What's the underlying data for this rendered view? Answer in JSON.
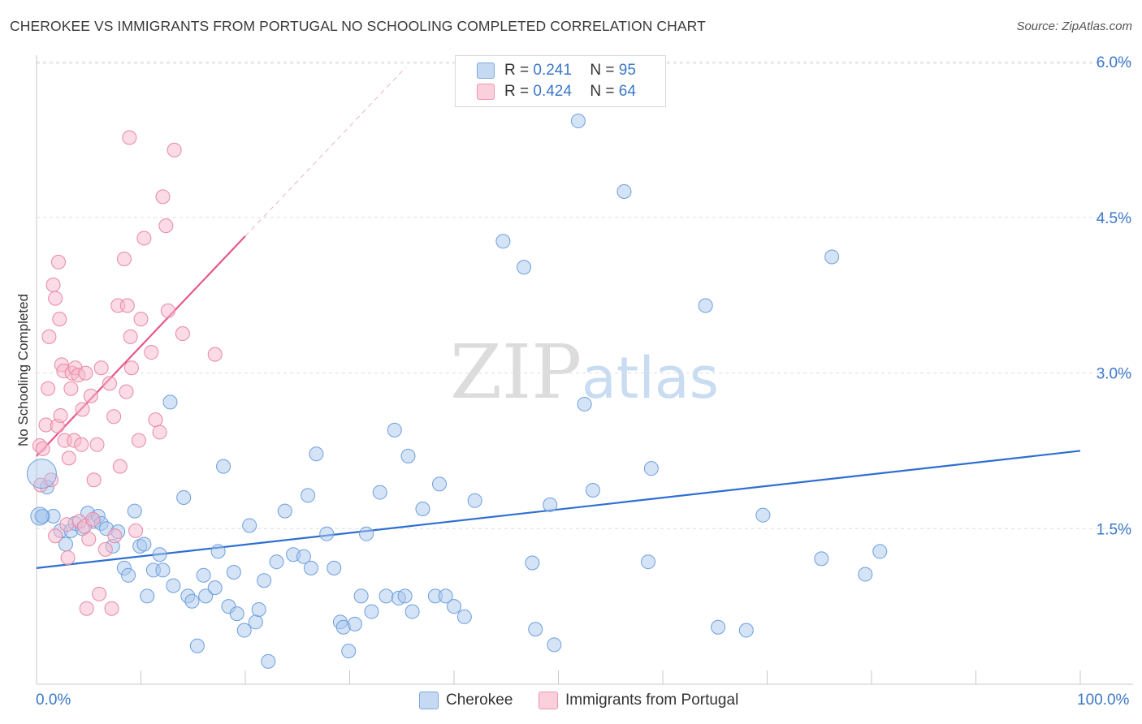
{
  "title": "CHEROKEE VS IMMIGRANTS FROM PORTUGAL NO SCHOOLING COMPLETED CORRELATION CHART",
  "source": "Source: ZipAtlas.com",
  "watermark": {
    "zip": "ZIP",
    "atlas": "atlas"
  },
  "legend": {
    "r_label": "R =",
    "n_label": "N =",
    "series": [
      {
        "name": "Cherokee",
        "r": "0.241",
        "n": "95",
        "color": "#a9c7ee"
      },
      {
        "name": "Immigrants from Portugal",
        "r": "0.424",
        "n": "64",
        "color": "#f7b8cb"
      }
    ]
  },
  "x_axis": {
    "min_label": "0.0%",
    "max_label": "100.0%"
  },
  "chart_data": {
    "type": "scatter",
    "title": "CHEROKEE VS IMMIGRANTS FROM PORTUGAL NO SCHOOLING COMPLETED CORRELATION CHART",
    "xlabel": "",
    "ylabel": "No Schooling Completed",
    "xlim": [
      0,
      100
    ],
    "ylim": [
      0,
      6.3
    ],
    "y_ticks": [
      {
        "value": 1.5,
        "label": "1.5%"
      },
      {
        "value": 3.0,
        "label": "3.0%"
      },
      {
        "value": 4.5,
        "label": "4.5%"
      },
      {
        "value": 6.0,
        "label": "6.0%"
      }
    ],
    "x_ticks": [
      0,
      10,
      20,
      30,
      40,
      50,
      60,
      70,
      80,
      90,
      100
    ],
    "grid": "horizontal-dashed",
    "series": [
      {
        "name": "Cherokee",
        "color": "#a9c7ee",
        "stroke": "#6e9fdc",
        "trend": {
          "x": [
            0,
            100
          ],
          "y": [
            1.12,
            2.25
          ],
          "color": "#2e6fd0"
        },
        "points": [
          [
            0.5,
            1.62
          ],
          [
            0.6,
            1.62
          ],
          [
            1.0,
            1.9
          ],
          [
            1.6,
            1.62
          ],
          [
            2.3,
            1.48
          ],
          [
            2.8,
            1.35
          ],
          [
            3.3,
            1.48
          ],
          [
            3.7,
            1.55
          ],
          [
            4.4,
            1.5
          ],
          [
            4.9,
            1.65
          ],
          [
            5.5,
            1.57
          ],
          [
            5.9,
            1.62
          ],
          [
            6.2,
            1.55
          ],
          [
            6.7,
            1.5
          ],
          [
            7.3,
            1.33
          ],
          [
            7.8,
            1.47
          ],
          [
            8.4,
            1.12
          ],
          [
            8.8,
            1.05
          ],
          [
            9.4,
            1.67
          ],
          [
            9.9,
            1.33
          ],
          [
            10.3,
            1.35
          ],
          [
            10.6,
            0.85
          ],
          [
            11.2,
            1.1
          ],
          [
            11.8,
            1.25
          ],
          [
            12.1,
            1.1
          ],
          [
            12.8,
            2.72
          ],
          [
            13.1,
            0.95
          ],
          [
            14.1,
            1.8
          ],
          [
            14.5,
            0.85
          ],
          [
            14.9,
            0.8
          ],
          [
            15.4,
            0.37
          ],
          [
            16.2,
            0.85
          ],
          [
            16.0,
            1.05
          ],
          [
            17.1,
            0.93
          ],
          [
            17.4,
            1.28
          ],
          [
            17.9,
            2.1
          ],
          [
            18.4,
            0.75
          ],
          [
            18.9,
            1.08
          ],
          [
            19.2,
            0.68
          ],
          [
            19.9,
            0.52
          ],
          [
            20.4,
            1.53
          ],
          [
            21.0,
            0.6
          ],
          [
            21.3,
            0.72
          ],
          [
            21.8,
            1.0
          ],
          [
            22.2,
            0.22
          ],
          [
            23.0,
            1.18
          ],
          [
            23.8,
            1.67
          ],
          [
            24.6,
            1.25
          ],
          [
            25.6,
            1.23
          ],
          [
            26.0,
            1.82
          ],
          [
            26.3,
            1.12
          ],
          [
            26.8,
            2.22
          ],
          [
            27.8,
            1.45
          ],
          [
            28.5,
            1.12
          ],
          [
            29.1,
            0.6
          ],
          [
            29.4,
            0.55
          ],
          [
            29.9,
            0.32
          ],
          [
            30.5,
            0.58
          ],
          [
            31.1,
            0.85
          ],
          [
            31.6,
            1.45
          ],
          [
            32.1,
            0.7
          ],
          [
            32.9,
            1.85
          ],
          [
            33.5,
            0.85
          ],
          [
            34.3,
            2.45
          ],
          [
            34.7,
            0.83
          ],
          [
            35.3,
            0.85
          ],
          [
            35.6,
            2.2
          ],
          [
            36.0,
            0.7
          ],
          [
            37.0,
            1.69
          ],
          [
            38.2,
            0.85
          ],
          [
            38.6,
            1.93
          ],
          [
            39.2,
            0.85
          ],
          [
            40.0,
            0.75
          ],
          [
            41.0,
            0.65
          ],
          [
            42.0,
            1.77
          ],
          [
            44.7,
            4.27
          ],
          [
            46.7,
            4.02
          ],
          [
            47.5,
            1.17
          ],
          [
            47.8,
            0.53
          ],
          [
            49.2,
            1.73
          ],
          [
            49.6,
            0.38
          ],
          [
            51.9,
            5.43
          ],
          [
            52.5,
            2.7
          ],
          [
            53.3,
            1.87
          ],
          [
            56.3,
            4.75
          ],
          [
            58.6,
            1.18
          ],
          [
            58.9,
            2.08
          ],
          [
            64.1,
            3.65
          ],
          [
            65.3,
            0.55
          ],
          [
            68.0,
            0.52
          ],
          [
            69.6,
            1.63
          ],
          [
            75.2,
            1.21
          ],
          [
            76.2,
            4.12
          ],
          [
            79.4,
            1.06
          ],
          [
            80.8,
            1.28
          ]
        ]
      },
      {
        "name": "Immigrants from Portugal",
        "color": "#f7b8cb",
        "stroke": "#e888a5",
        "trend": {
          "x": [
            0,
            20
          ],
          "y": [
            2.2,
            4.32
          ],
          "color": "#e8578c",
          "dashed_extension_to": {
            "x": 35.4,
            "y": 5.95
          }
        },
        "points": [
          [
            0.3,
            2.3
          ],
          [
            0.4,
            1.92
          ],
          [
            0.6,
            2.27
          ],
          [
            0.9,
            2.5
          ],
          [
            1.1,
            2.85
          ],
          [
            1.2,
            3.35
          ],
          [
            1.4,
            1.97
          ],
          [
            1.6,
            3.85
          ],
          [
            1.8,
            1.43
          ],
          [
            1.8,
            3.72
          ],
          [
            2.0,
            2.49
          ],
          [
            2.1,
            4.07
          ],
          [
            2.2,
            3.52
          ],
          [
            2.3,
            2.59
          ],
          [
            2.4,
            3.08
          ],
          [
            2.6,
            3.02
          ],
          [
            2.7,
            2.35
          ],
          [
            2.9,
            1.54
          ],
          [
            3.0,
            1.22
          ],
          [
            3.1,
            2.18
          ],
          [
            3.3,
            2.85
          ],
          [
            3.4,
            3.0
          ],
          [
            3.6,
            2.35
          ],
          [
            3.7,
            3.05
          ],
          [
            4.0,
            2.98
          ],
          [
            4.1,
            1.57
          ],
          [
            4.3,
            2.31
          ],
          [
            4.4,
            2.65
          ],
          [
            4.6,
            1.52
          ],
          [
            4.7,
            3.0
          ],
          [
            4.8,
            0.73
          ],
          [
            5.0,
            1.4
          ],
          [
            5.2,
            2.78
          ],
          [
            5.4,
            1.59
          ],
          [
            5.5,
            1.97
          ],
          [
            5.8,
            2.31
          ],
          [
            6.0,
            0.87
          ],
          [
            6.2,
            3.05
          ],
          [
            6.6,
            1.3
          ],
          [
            7.0,
            2.9
          ],
          [
            7.2,
            0.73
          ],
          [
            7.4,
            2.58
          ],
          [
            7.5,
            1.43
          ],
          [
            7.8,
            3.65
          ],
          [
            8.0,
            2.1
          ],
          [
            8.4,
            4.1
          ],
          [
            8.6,
            2.82
          ],
          [
            8.7,
            3.65
          ],
          [
            8.9,
            5.27
          ],
          [
            9.0,
            3.35
          ],
          [
            9.1,
            3.05
          ],
          [
            9.5,
            1.48
          ],
          [
            9.8,
            2.35
          ],
          [
            10.0,
            3.52
          ],
          [
            10.3,
            4.3
          ],
          [
            11.0,
            3.2
          ],
          [
            11.4,
            2.55
          ],
          [
            11.8,
            2.43
          ],
          [
            12.1,
            4.7
          ],
          [
            12.4,
            4.42
          ],
          [
            12.6,
            3.6
          ],
          [
            13.2,
            5.15
          ],
          [
            14.0,
            3.38
          ],
          [
            17.1,
            3.18
          ]
        ]
      }
    ]
  }
}
